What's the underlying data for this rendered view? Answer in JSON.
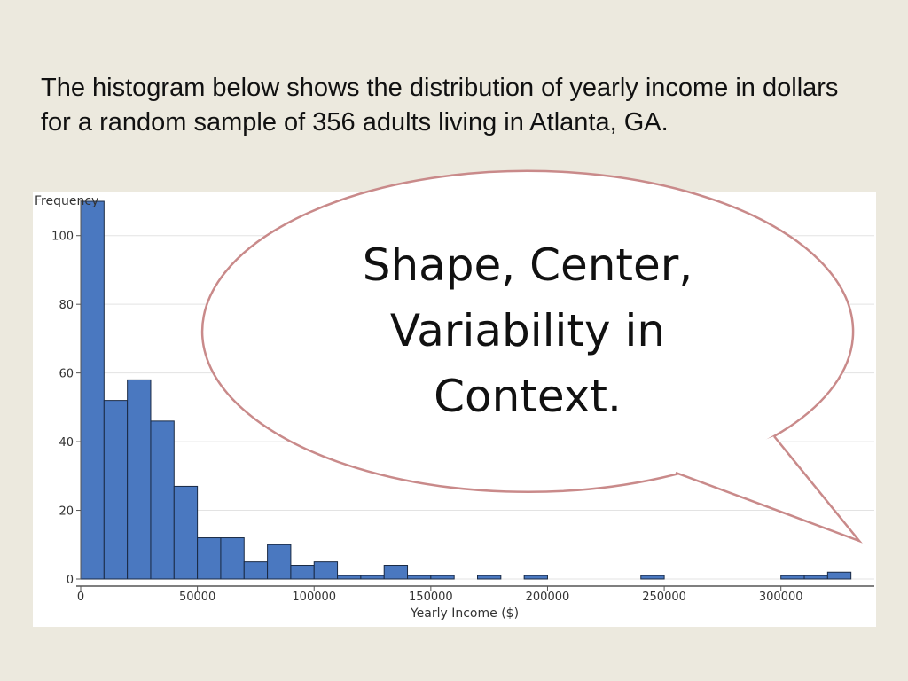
{
  "intro_text": "The histogram below shows the distribution of yearly income in dollars for a random sample of 356 adults living in Atlanta, GA.",
  "callout_text": "Shape, Center, Variability in Context.",
  "colors": {
    "bar_fill": "#4A78C0",
    "bubble_stroke": "#C98A8A"
  },
  "chart_data": {
    "type": "bar",
    "title": "",
    "xlabel": "Yearly Income ($)",
    "ylabel": "Frequency",
    "xlim": [
      0,
      340000
    ],
    "ylim": [
      0,
      110
    ],
    "x_ticks": [
      0,
      50000,
      100000,
      150000,
      200000,
      250000,
      300000
    ],
    "x_tick_labels": [
      "0",
      "50000",
      "100000",
      "150000",
      "200000",
      "250000",
      "300000"
    ],
    "y_ticks": [
      0,
      20,
      40,
      60,
      80,
      100
    ],
    "y_tick_labels": [
      "0",
      "20",
      "40",
      "60",
      "80",
      "100"
    ],
    "bin_width": 10000,
    "bin_starts": [
      0,
      10000,
      20000,
      30000,
      40000,
      50000,
      60000,
      70000,
      80000,
      90000,
      100000,
      110000,
      120000,
      130000,
      140000,
      150000,
      170000,
      190000,
      240000,
      300000,
      310000,
      320000
    ],
    "values": [
      110,
      52,
      58,
      46,
      27,
      12,
      12,
      5,
      10,
      4,
      5,
      1,
      1,
      4,
      1,
      1,
      1,
      1,
      1,
      1,
      1,
      2
    ],
    "grid": true
  }
}
